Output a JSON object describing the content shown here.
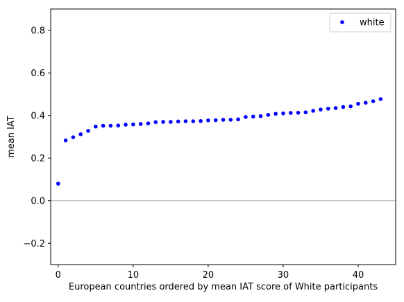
{
  "chart_data": {
    "type": "scatter",
    "xlabel": "European countries ordered by mean IAT score of White participants",
    "ylabel": "mean IAT",
    "xlim": [
      -1,
      45
    ],
    "ylim": [
      -0.3,
      0.9
    ],
    "xticks": [
      0,
      10,
      20,
      30,
      40
    ],
    "yticks": [
      -0.2,
      0.0,
      0.2,
      0.4,
      0.6,
      0.8
    ],
    "ytick_labels": [
      "−0.2",
      "0.0",
      "0.2",
      "0.4",
      "0.6",
      "0.8"
    ],
    "grid": false,
    "reference_line": {
      "y": 0.0,
      "color": "#bfbfbf"
    },
    "legend": {
      "placement": "top-right"
    },
    "series": [
      {
        "name": "white",
        "color": "#0000ff",
        "marker": "dot",
        "x": [
          0,
          1,
          2,
          3,
          4,
          5,
          6,
          7,
          8,
          9,
          10,
          11,
          12,
          13,
          14,
          15,
          16,
          17,
          18,
          19,
          20,
          21,
          22,
          23,
          24,
          25,
          26,
          27,
          28,
          29,
          30,
          31,
          32,
          33,
          34,
          35,
          36,
          37,
          38,
          39,
          40,
          41,
          42,
          43
        ],
        "y": [
          0.08,
          0.283,
          0.298,
          0.312,
          0.328,
          0.348,
          0.352,
          0.352,
          0.353,
          0.357,
          0.358,
          0.36,
          0.363,
          0.369,
          0.37,
          0.37,
          0.372,
          0.373,
          0.373,
          0.374,
          0.377,
          0.378,
          0.38,
          0.38,
          0.382,
          0.393,
          0.395,
          0.397,
          0.403,
          0.408,
          0.41,
          0.412,
          0.413,
          0.415,
          0.422,
          0.428,
          0.432,
          0.435,
          0.44,
          0.443,
          0.455,
          0.46,
          0.467,
          0.477
        ]
      }
    ]
  }
}
